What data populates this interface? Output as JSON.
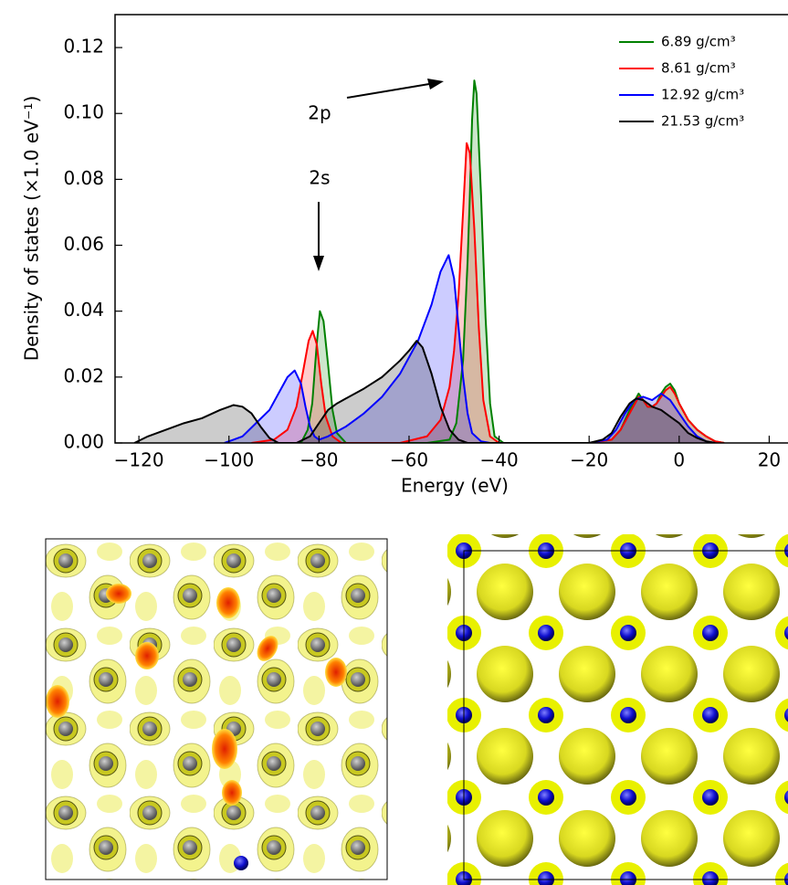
{
  "chart_data": {
    "type": "line",
    "xlabel": "Energy (eV)",
    "ylabel": "Density of states (×1.0 eV⁻¹)",
    "xlim": [
      -125.3,
      26
    ],
    "ylim": [
      0,
      0.13
    ],
    "xticks": [
      {
        "value": -120,
        "label": "−120"
      },
      {
        "value": -100,
        "label": "−100"
      },
      {
        "value": -80,
        "label": "−80"
      },
      {
        "value": -60,
        "label": "−60"
      },
      {
        "value": -40,
        "label": "−40"
      },
      {
        "value": -20,
        "label": "−20"
      },
      0,
      20
    ],
    "yticks": [
      {
        "value": 0,
        "label": "0.00"
      },
      {
        "value": 0.02,
        "label": "0.02"
      },
      {
        "value": 0.04,
        "label": "0.04"
      },
      {
        "value": 0.06,
        "label": "0.06"
      },
      {
        "value": 0.08,
        "label": "0.08"
      },
      {
        "value": 0.1,
        "label": "0.10"
      },
      {
        "value": 0.12,
        "label": "0.12"
      }
    ],
    "legend": "upper right",
    "fill": true,
    "annotations": [
      "2p",
      "2s"
    ],
    "series": [
      {
        "name": "6.89 g/cm³",
        "color": "#008000",
        "x": [
          -90,
          -84,
          -82.5,
          -81.5,
          -80.5,
          -79.8,
          -79,
          -78,
          -77,
          -76,
          -74,
          -56,
          -51,
          -49.5,
          -48,
          -47,
          -46.5,
          -46,
          -45.5,
          -45,
          -44,
          -43,
          -42,
          -41,
          -39,
          -20,
          -15,
          -13,
          -11,
          -9,
          -8,
          -7,
          -6,
          -5,
          -4,
          -3,
          -2,
          -1,
          0,
          2,
          4,
          6,
          8,
          10
        ],
        "values": [
          0,
          0,
          0.004,
          0.012,
          0.03,
          0.04,
          0.037,
          0.024,
          0.01,
          0.003,
          0,
          0,
          0.001,
          0.006,
          0.025,
          0.055,
          0.075,
          0.098,
          0.11,
          0.106,
          0.075,
          0.038,
          0.012,
          0.002,
          0,
          0,
          0.001,
          0.004,
          0.01,
          0.015,
          0.013,
          0.011,
          0.011,
          0.012,
          0.015,
          0.017,
          0.018,
          0.016,
          0.012,
          0.007,
          0.004,
          0.002,
          0.0005,
          0
        ]
      },
      {
        "name": "8.61 g/cm³",
        "color": "#ff0000",
        "x": [
          -95,
          -90,
          -87,
          -85,
          -83.5,
          -82.3,
          -81.4,
          -80.5,
          -79.5,
          -78.5,
          -77,
          -75,
          -62,
          -56,
          -53,
          -51,
          -50,
          -49,
          -48,
          -47.2,
          -46.5,
          -45.5,
          -44.5,
          -43.5,
          -42,
          -40,
          -20,
          -15,
          -13,
          -11,
          -9,
          -8,
          -7,
          -6,
          -5,
          -4,
          -3,
          -2,
          -1,
          0,
          2,
          4,
          6,
          8,
          10
        ],
        "values": [
          0,
          0.001,
          0.004,
          0.011,
          0.022,
          0.031,
          0.034,
          0.03,
          0.018,
          0.008,
          0.002,
          0,
          0,
          0.002,
          0.007,
          0.017,
          0.028,
          0.045,
          0.07,
          0.091,
          0.088,
          0.065,
          0.035,
          0.013,
          0.002,
          0,
          0,
          0.001,
          0.004,
          0.009,
          0.014,
          0.013,
          0.011,
          0.011,
          0.012,
          0.014,
          0.016,
          0.017,
          0.015,
          0.012,
          0.007,
          0.004,
          0.002,
          0.0005,
          0
        ]
      },
      {
        "name": "12.92 g/cm³",
        "color": "#0000ff",
        "x": [
          -101,
          -97,
          -94,
          -91,
          -89,
          -87,
          -85.4,
          -84,
          -83,
          -82,
          -81,
          -80,
          -78,
          -74,
          -70,
          -66,
          -62,
          -58,
          -55,
          -53,
          -51.2,
          -50,
          -49,
          -48,
          -47,
          -46,
          -44,
          -42,
          -20,
          -16,
          -14,
          -12,
          -10,
          -8,
          -6,
          -4,
          -2,
          0,
          2,
          4,
          6,
          8
        ],
        "values": [
          0,
          0.002,
          0.006,
          0.01,
          0.015,
          0.02,
          0.022,
          0.018,
          0.011,
          0.005,
          0.002,
          0.001,
          0.002,
          0.005,
          0.009,
          0.014,
          0.021,
          0.031,
          0.042,
          0.052,
          0.057,
          0.05,
          0.035,
          0.02,
          0.009,
          0.003,
          0.0005,
          0,
          0,
          0.001,
          0.004,
          0.009,
          0.013,
          0.014,
          0.013,
          0.015,
          0.013,
          0.009,
          0.005,
          0.002,
          0.0005,
          0
        ]
      },
      {
        "name": "21.53 g/cm³",
        "color": "#000000",
        "x": [
          -121,
          -118,
          -114,
          -110,
          -106,
          -102,
          -99,
          -97,
          -95,
          -93,
          -91,
          -89,
          -85,
          -82,
          -80,
          -78,
          -76,
          -74,
          -72,
          -70,
          -66,
          -62,
          -60,
          -58.3,
          -57,
          -55,
          -53,
          -51,
          -49,
          -47,
          -20,
          -17,
          -15,
          -13,
          -11,
          -9.5,
          -8,
          -6,
          -4,
          -2,
          0,
          2,
          4,
          6,
          8
        ],
        "values": [
          0,
          0.002,
          0.004,
          0.006,
          0.0075,
          0.01,
          0.0115,
          0.011,
          0.009,
          0.005,
          0.0015,
          0,
          0,
          0.002,
          0.006,
          0.01,
          0.012,
          0.0135,
          0.015,
          0.0165,
          0.02,
          0.025,
          0.028,
          0.031,
          0.029,
          0.021,
          0.011,
          0.004,
          0.001,
          0,
          0,
          0.001,
          0.003,
          0.008,
          0.012,
          0.0135,
          0.013,
          0.011,
          0.01,
          0.008,
          0.006,
          0.003,
          0.0015,
          0.0005,
          0
        ]
      }
    ]
  }
}
